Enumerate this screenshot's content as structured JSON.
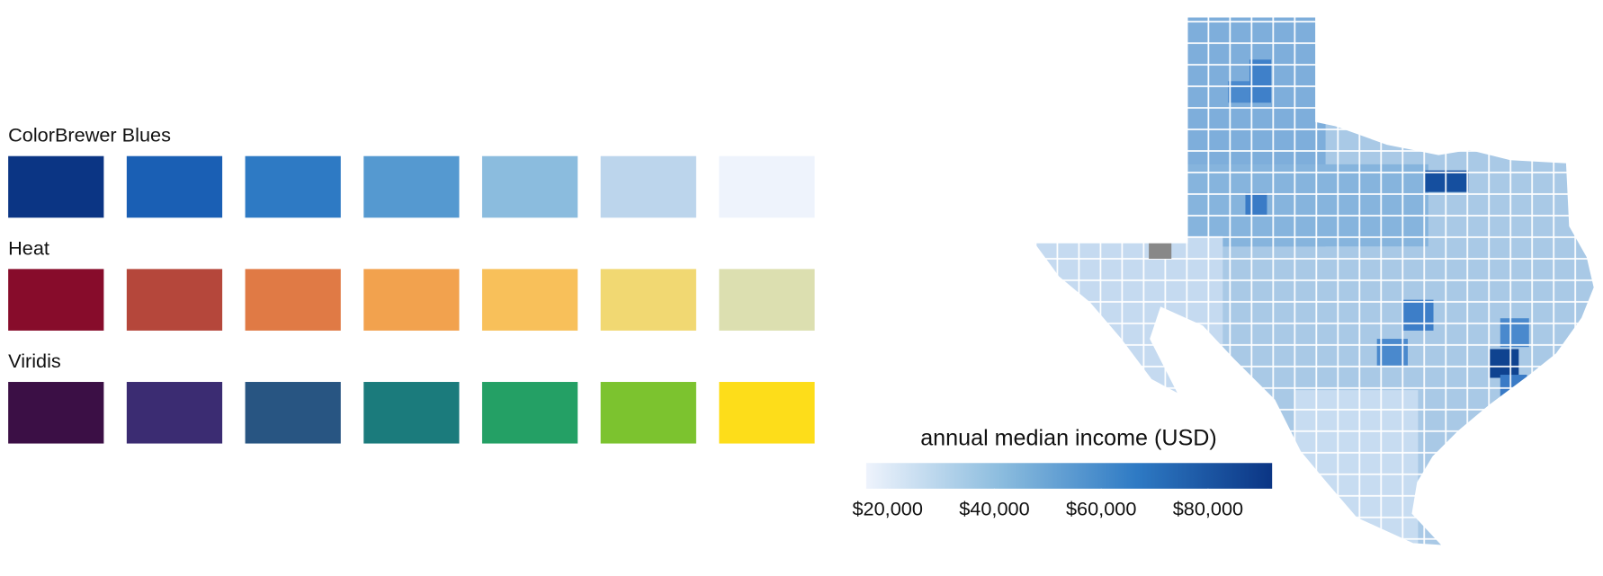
{
  "palettes": [
    {
      "name": "ColorBrewer Blues",
      "colors": [
        "#0b3584",
        "#1a5fb4",
        "#2e7ac4",
        "#5599d0",
        "#8bbcde",
        "#bcd5ec",
        "#eef3fc"
      ]
    },
    {
      "name": "Heat",
      "colors": [
        "#870c2b",
        "#b5473b",
        "#e07a45",
        "#f2a24e",
        "#f8c05a",
        "#f1d872",
        "#dcdfb0"
      ]
    },
    {
      "name": "Viridis",
      "colors": [
        "#3b0f45",
        "#3b2c72",
        "#285582",
        "#1b7b7c",
        "#24a065",
        "#7cc32f",
        "#fddd1a"
      ]
    }
  ],
  "legend": {
    "title": "annual median income (USD)",
    "lim": [
      16000,
      92000
    ],
    "ticks": [
      {
        "value": 20000,
        "label": "$20,000"
      },
      {
        "value": 40000,
        "label": "$40,000"
      },
      {
        "value": 60000,
        "label": "$60,000"
      },
      {
        "value": 80000,
        "label": "$80,000"
      }
    ],
    "colors": [
      "#eef3fc",
      "#8bbcde",
      "#2e7ac4",
      "#0b3584"
    ]
  }
}
